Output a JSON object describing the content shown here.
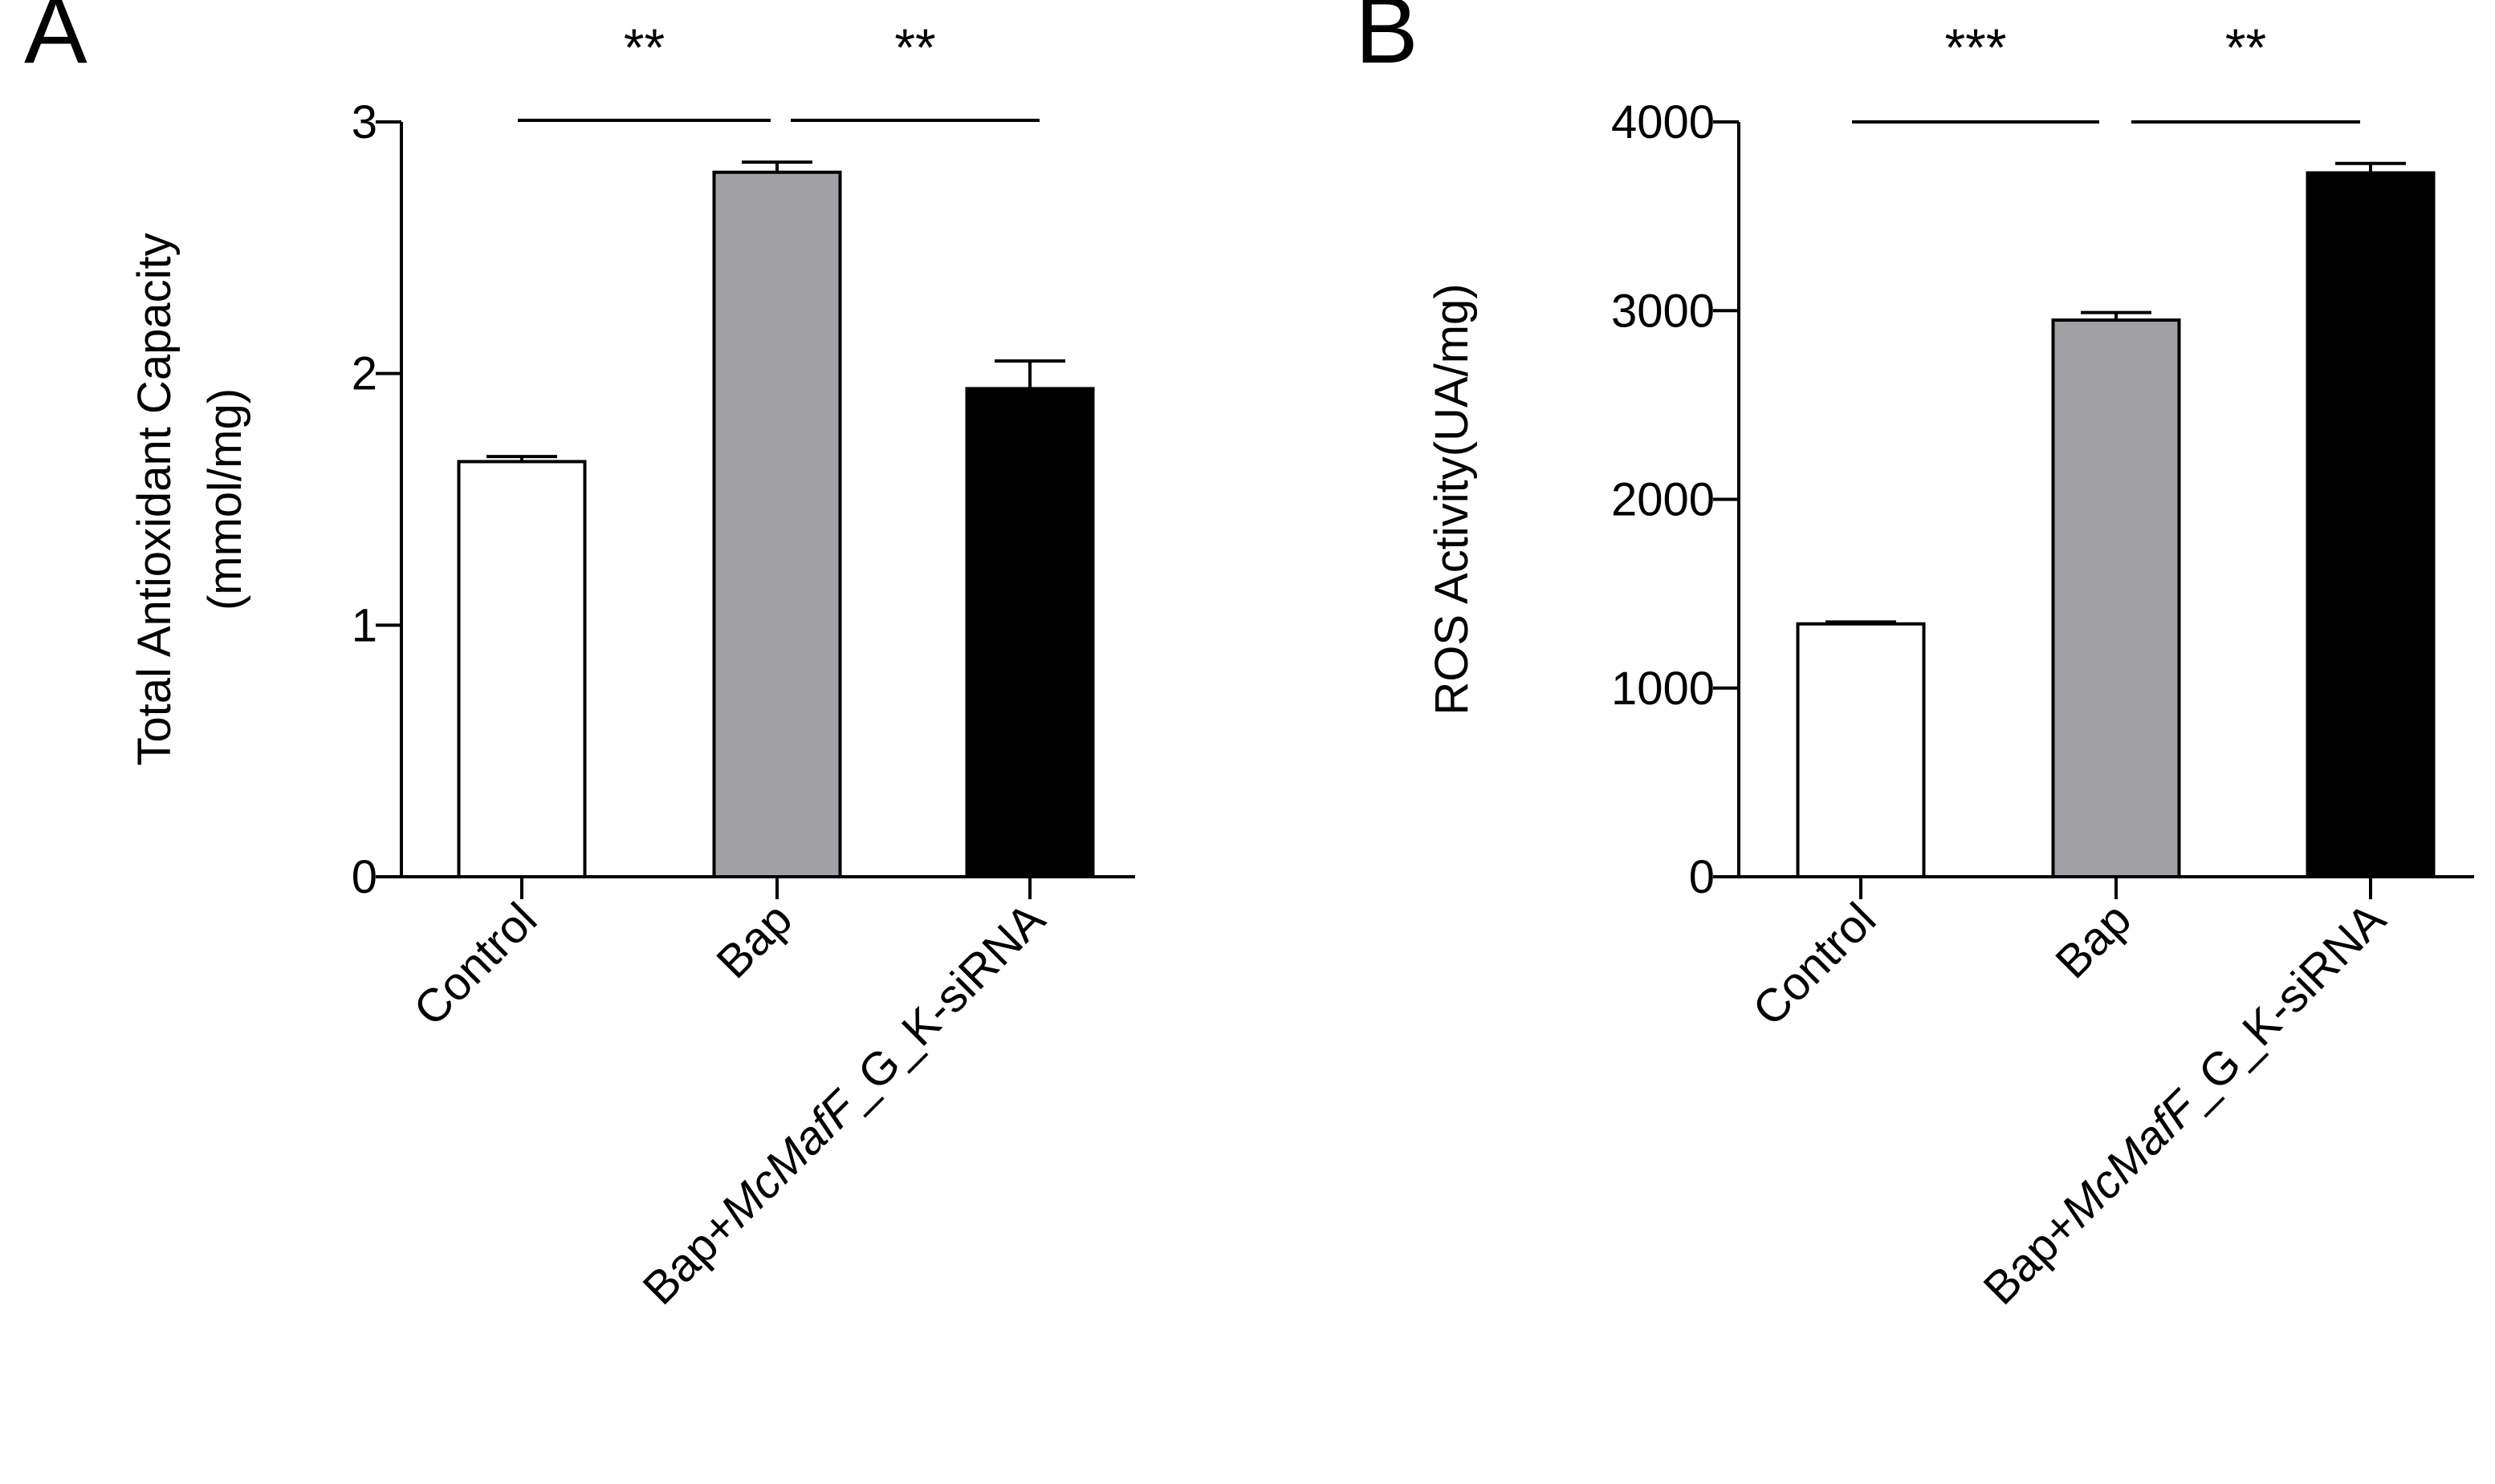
{
  "figure": {
    "background": "#ffffff"
  },
  "chart_data": [
    {
      "type": "bar",
      "panel_label": "A",
      "title": "",
      "ylabel": "Total Antioxidant Capacity",
      "ylabel_unit": "(mmol/mg)",
      "xlabel": "",
      "ylim": [
        0,
        3
      ],
      "yticks": [
        "0",
        "1",
        "2",
        "3"
      ],
      "ytick_values": [
        0,
        1,
        2,
        3
      ],
      "categories": [
        "Control",
        "Bap",
        "Bap+McMafF_G_K-siRNA"
      ],
      "category_parts": [
        {
          "normal": "Control",
          "italic": "",
          "suffix": ""
        },
        {
          "normal": "Bap",
          "italic": "",
          "suffix": ""
        },
        {
          "normal": "Bap+",
          "italic": "McMafF",
          "suffix": "_G_K-siRNA"
        }
      ],
      "values": [
        1.65,
        2.8,
        1.94
      ],
      "errors": [
        0.02,
        0.04,
        0.11
      ],
      "colors": [
        "#ffffff",
        "#a1a0a5",
        "#000000"
      ],
      "significance": [
        {
          "from": 0,
          "to": 1,
          "label": "**"
        },
        {
          "from": 1,
          "to": 2,
          "label": "**"
        }
      ]
    },
    {
      "type": "bar",
      "panel_label": "B",
      "title": "",
      "ylabel": "ROS Activity(UA/mg)",
      "ylabel_unit": "",
      "xlabel": "",
      "ylim": [
        0,
        4000
      ],
      "yticks": [
        "0",
        "1000",
        "2000",
        "3000",
        "4000"
      ],
      "ytick_values": [
        0,
        1000,
        2000,
        3000,
        4000
      ],
      "categories": [
        "Control",
        "Bap",
        "Bap+McMafF_G_K-siRNA"
      ],
      "category_parts": [
        {
          "normal": "Control",
          "italic": "",
          "suffix": ""
        },
        {
          "normal": "Bap",
          "italic": "",
          "suffix": ""
        },
        {
          "normal": "Bap+",
          "italic": "McMafF",
          "suffix": "_G_K-siRNA"
        }
      ],
      "values": [
        1340,
        2950,
        3730
      ],
      "errors": [
        10,
        40,
        50
      ],
      "colors": [
        "#ffffff",
        "#a1a0a5",
        "#000000"
      ],
      "significance": [
        {
          "from": 0,
          "to": 1,
          "label": "***"
        },
        {
          "from": 1,
          "to": 2,
          "label": "**"
        }
      ]
    }
  ]
}
